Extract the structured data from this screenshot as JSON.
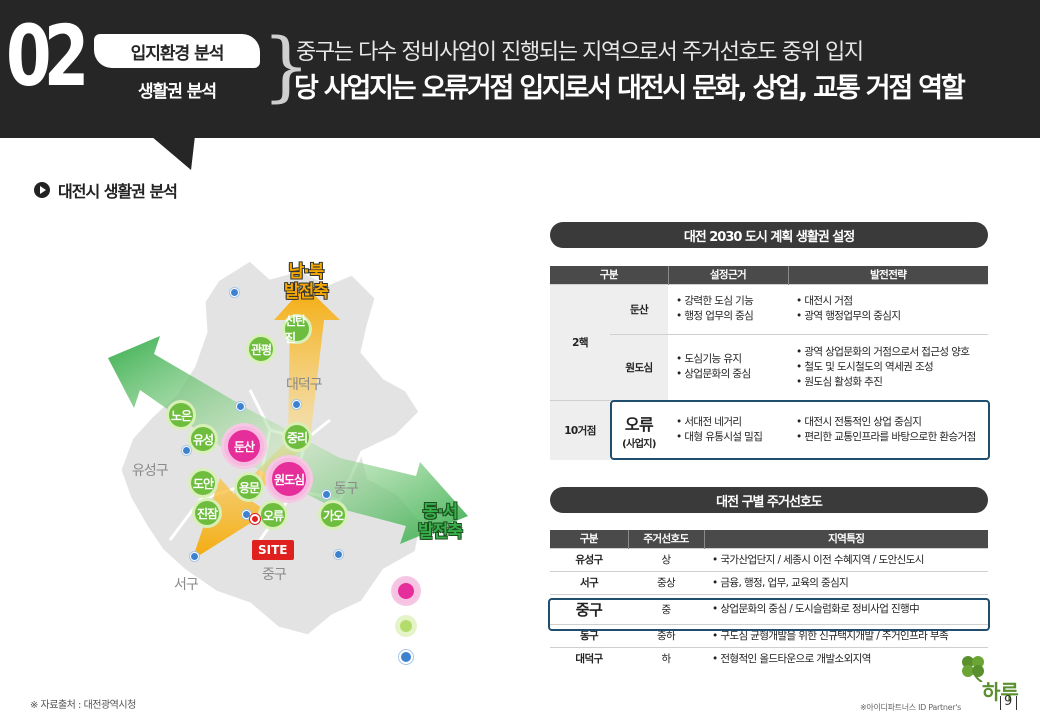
{
  "header": {
    "section_number": "02",
    "section_title": "입지환경 분석",
    "section_subtitle": "생활권 분석",
    "headline_line1": "중구는 다수 정비사업이 진행되는 지역으로서 주거선호도 중위 입지",
    "headline_line2": "당 사업지는 오류거점 입지로서 대전시 문화, 상업, 교통 거점 역할"
  },
  "section": {
    "title": "대전시 생활권 분석"
  },
  "map": {
    "axis_north_south": [
      "남·북",
      "발전축"
    ],
    "axis_east_west": [
      "동·서",
      "발전축"
    ],
    "core_nodes": [
      "둔산",
      "원도심"
    ],
    "hub_nodes": [
      "신탄진",
      "관평",
      "노은",
      "유성",
      "중리",
      "도안",
      "용문",
      "진잠",
      "오류",
      "가오"
    ],
    "districts": [
      "대덕구",
      "유성구",
      "동구",
      "서구",
      "중구"
    ],
    "site_label": "SITE",
    "colors": {
      "core": "#e62e9a",
      "hub": "#6ebd3f",
      "minor": "#3d82cf",
      "ns_axis": "#f5a800",
      "ew_axis": "#36b049",
      "site": "#e0201f"
    }
  },
  "table1": {
    "title": "대전 2030 도시 계획 생활권 설정",
    "headers": [
      "구분",
      "설정근거",
      "발전전략"
    ],
    "group_2": "2핵",
    "group_10": "10거점",
    "rows": [
      {
        "name": "둔산",
        "basis": [
          "강력한 도심 기능",
          "행정 업무의 중심"
        ],
        "strategy": [
          "대전시 거점",
          "광역 행정업무의 중심지"
        ]
      },
      {
        "name": "원도심",
        "basis": [
          "도심기능 유지",
          "상업문화의 중심"
        ],
        "strategy": [
          "광역 상업문화의 거점으로서 접근성 양호",
          "철도 및 도시철도의 역세권 조성",
          "원도심 활성화 추진"
        ]
      },
      {
        "name": "오류",
        "name_sub": "(사업지)",
        "basis": [
          "서대전 네거리",
          "대형 유통시설 밀집"
        ],
        "strategy": [
          "대전시 전통적인 상업 중심지",
          "편리한 교통인프라를 바탕으로한 환승거점"
        ]
      }
    ]
  },
  "table2": {
    "title": "대전 구별 주거선호도",
    "headers": [
      "구분",
      "주거선호도",
      "지역특징"
    ],
    "rows": [
      {
        "gu": "유성구",
        "pref": "상",
        "feature": "국가산업단지 / 세종시 이전 수혜지역 / 도안신도시"
      },
      {
        "gu": "서구",
        "pref": "중상",
        "feature": "금융, 행정, 업무, 교육의 중심지"
      },
      {
        "gu": "중구",
        "pref": "중",
        "feature": "상업문화의 중심 / 도시슬럼화로 정비사업 진행中"
      },
      {
        "gu": "동구",
        "pref": "중하",
        "feature": "구도심 균형개발을 위한 신규택지개발 / 주거인프라 부족"
      },
      {
        "gu": "대덕구",
        "pref": "하",
        "feature": "전형적인 올드타운으로 개발소외지역"
      }
    ]
  },
  "footer": {
    "source": "※ 자료출처 : 대전광역시청",
    "credit": "※아이디파트너스 ID Partner's",
    "brand": "하루",
    "page": "9"
  }
}
